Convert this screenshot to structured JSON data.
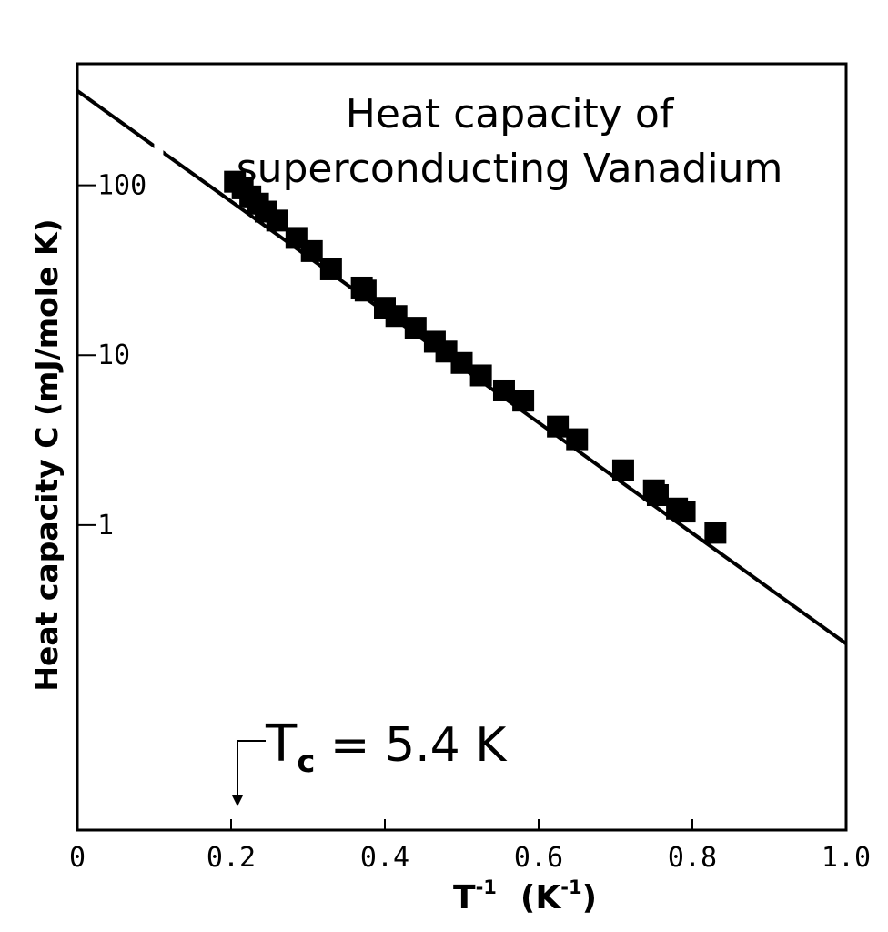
{
  "chart_data": {
    "type": "scatter",
    "title_lines": [
      "Heat capacity of",
      "superconducting Vanadium"
    ],
    "xlabel": {
      "base": "T",
      "sup": "-1",
      "unit_base": "(K",
      "unit_sup": "-1",
      "unit_close": ")"
    },
    "ylabel": "Heat capacity C (mJ/mole K)",
    "y_scale": "log",
    "xlim": [
      0,
      1.0
    ],
    "ylim": [
      0.016,
      520
    ],
    "x_ticks": [
      0,
      0.2,
      0.4,
      0.6,
      0.8,
      1.0
    ],
    "x_tick_labels": [
      "0",
      "0.2",
      "0.4",
      "0.6",
      "0.8",
      "1.0"
    ],
    "y_ticks": [
      1,
      10,
      100
    ],
    "y_tick_labels": [
      "1",
      "10",
      "100"
    ],
    "grid": false,
    "legend": false,
    "fit_line": {
      "x": [
        0,
        1.0
      ],
      "y": [
        360,
        0.2
      ]
    },
    "series": [
      {
        "x": [
          0.205,
          0.215,
          0.225,
          0.235,
          0.245,
          0.26,
          0.285,
          0.305,
          0.33,
          0.37,
          0.375,
          0.4,
          0.415,
          0.44,
          0.465,
          0.48,
          0.5,
          0.525,
          0.555,
          0.58,
          0.625,
          0.65,
          0.71,
          0.75,
          0.755,
          0.78,
          0.79,
          0.83
        ],
        "y": [
          105,
          96,
          86,
          78,
          70,
          62,
          49,
          41,
          32,
          25,
          24,
          19,
          17,
          14.5,
          12,
          10.5,
          9,
          7.6,
          6.2,
          5.4,
          3.8,
          3.2,
          2.1,
          1.6,
          1.5,
          1.25,
          1.2,
          0.9
        ]
      }
    ],
    "annotation": {
      "text_base": "T",
      "text_sub": "c",
      "text_rest": " = 5.4 K",
      "x": 0.185
    }
  },
  "colors": {
    "ink": "#000000",
    "background": "#ffffff"
  }
}
